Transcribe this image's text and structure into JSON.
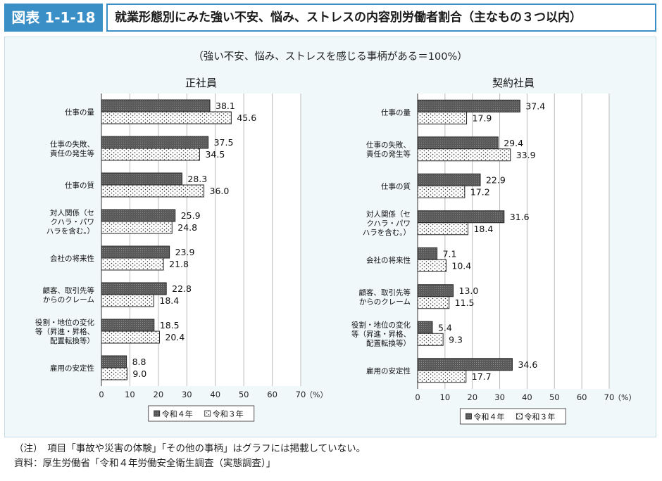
{
  "header": {
    "figure_id": "図表 1-1-18",
    "title": "就業形態別にみた強い不安、悩み、ストレスの内容別労働者割合（主なもの３つ以内）"
  },
  "colors": {
    "accent": "#3a8fc7",
    "panel_bg": "#f1f8fa"
  },
  "chart_data": [
    {
      "type": "bar",
      "orientation": "horizontal",
      "subtitle": "（強い不安、悩み、ストレスを感じる事柄がある＝100%）",
      "title": "正社員",
      "categories": [
        [
          "仕事の量"
        ],
        [
          "仕事の失敗、",
          "責任の発生等"
        ],
        [
          "仕事の質"
        ],
        [
          "対人関係（セ",
          "クハラ・パワ",
          "ハラを含む。）"
        ],
        [
          "会社の将来性"
        ],
        [
          "顧客、取引先等",
          "からのクレーム"
        ],
        [
          "役割・地位の変化",
          "等（昇進・昇格、",
          "配置転換等）"
        ],
        [
          "雇用の安定性"
        ]
      ],
      "series": [
        {
          "name": "令和４年",
          "pattern": "dark",
          "values": [
            38.1,
            37.5,
            28.3,
            25.9,
            23.9,
            22.8,
            18.5,
            8.8
          ]
        },
        {
          "name": "令和３年",
          "pattern": "dots",
          "values": [
            45.6,
            34.5,
            36.0,
            24.8,
            21.8,
            18.4,
            20.4,
            9.0
          ]
        }
      ],
      "value_labels": [
        [
          "38.1",
          "37.5",
          "28.3",
          "25.9",
          "23.9",
          "22.8",
          "18.5",
          "8.8"
        ],
        [
          "45.6",
          "34.5",
          "36.0",
          "24.8",
          "21.8",
          "18.4",
          "20.4",
          "9.0"
        ]
      ],
      "xlim": [
        0,
        70
      ],
      "xticks": [
        "0",
        "10",
        "20",
        "30",
        "40",
        "50",
        "60",
        "70"
      ],
      "unit": "（%）",
      "legend": "bottom-center"
    },
    {
      "type": "bar",
      "orientation": "horizontal",
      "title": "契約社員",
      "categories": [
        [
          "仕事の量"
        ],
        [
          "仕事の失敗、",
          "責任の発生等"
        ],
        [
          "仕事の質"
        ],
        [
          "対人関係（セ",
          "クハラ・パワ",
          "ハラを含む。）"
        ],
        [
          "会社の将来性"
        ],
        [
          "顧客、取引先等",
          "からのクレーム"
        ],
        [
          "役割・地位の変化",
          "等（昇進・昇格、",
          "配置転換等）"
        ],
        [
          "雇用の安定性"
        ]
      ],
      "series": [
        {
          "name": "令和４年",
          "pattern": "dark",
          "values": [
            37.4,
            29.4,
            22.9,
            31.6,
            7.1,
            13.0,
            5.4,
            34.6
          ]
        },
        {
          "name": "令和３年",
          "pattern": "dots",
          "values": [
            17.9,
            33.9,
            17.2,
            18.4,
            10.4,
            11.5,
            9.3,
            17.7
          ]
        }
      ],
      "value_labels": [
        [
          "37.4",
          "29.4",
          "22.9",
          "31.6",
          "7.1",
          "13.0",
          "5.4",
          "34.6"
        ],
        [
          "17.9",
          "33.9",
          "17.2",
          "18.4",
          "10.4",
          "11.5",
          "9.3",
          "17.7"
        ]
      ],
      "xlim": [
        0,
        70
      ],
      "xticks": [
        "0",
        "10",
        "20",
        "30",
        "40",
        "50",
        "60",
        "70"
      ],
      "unit": "（%）",
      "legend": "bottom-center"
    }
  ],
  "footer": {
    "note": "（注）　項目「事故や災害の体験」「その他の事柄」はグラフには掲載していない。",
    "source": "資料：厚生労働省「令和４年労働安全衛生調査（実態調査）」"
  }
}
